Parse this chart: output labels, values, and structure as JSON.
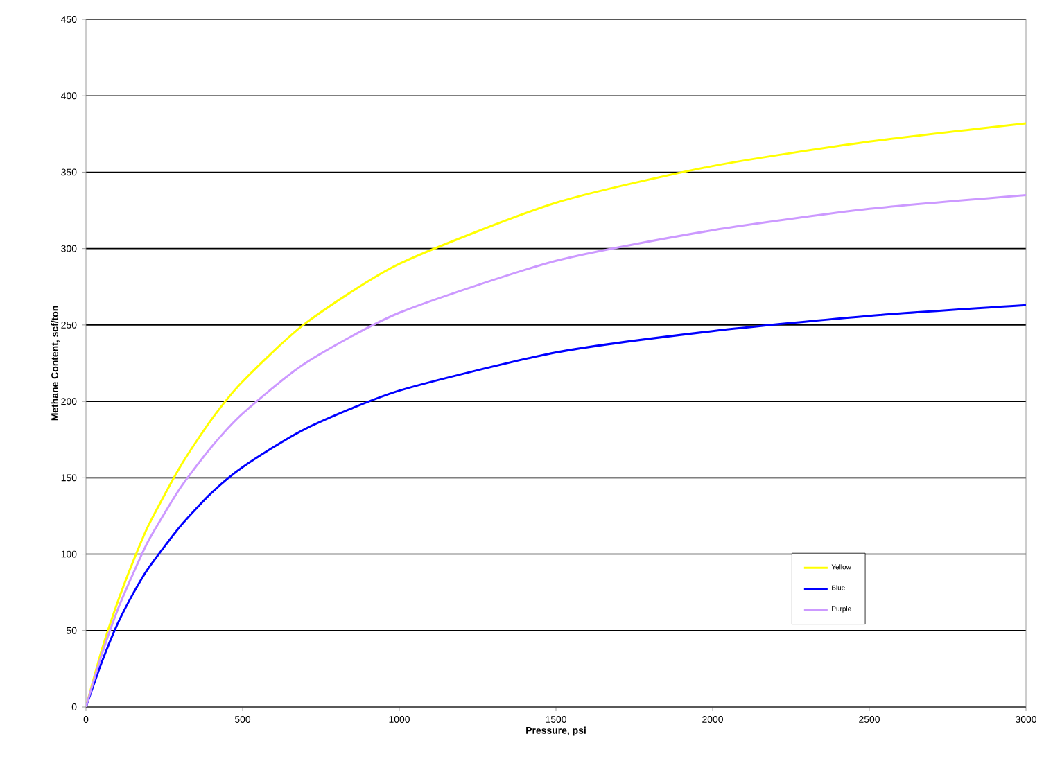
{
  "chart_data": {
    "type": "line",
    "xlabel": "Pressure, psi",
    "ylabel": "Methane Content, scf/ton",
    "x": [
      0,
      50,
      100,
      150,
      200,
      300,
      400,
      500,
      700,
      1000,
      1500,
      2000,
      2500,
      3000
    ],
    "series": [
      {
        "name": "Yellow",
        "color": "#ffff00",
        "values": [
          0,
          37,
          68,
          95,
          119,
          157,
          188,
          213,
          251,
          290,
          330,
          354,
          370,
          382
        ]
      },
      {
        "name": "Blue",
        "color": "#0000ff",
        "values": [
          0,
          29,
          54,
          74,
          91,
          118,
          140,
          157,
          182,
          207,
          232,
          246,
          256,
          263
        ]
      },
      {
        "name": "Purple",
        "color": "#cc99ff",
        "values": [
          0,
          34,
          63,
          87,
          109,
          143,
          170,
          192,
          225,
          258,
          292,
          312,
          326,
          335
        ]
      }
    ],
    "xlim": [
      0,
      3000
    ],
    "ylim": [
      0,
      450
    ],
    "xticks": [
      0,
      500,
      1000,
      1500,
      2000,
      2500,
      3000
    ],
    "yticks": [
      0,
      50,
      100,
      150,
      200,
      250,
      300,
      350,
      400,
      450
    ],
    "grid": "y",
    "legend": "bottom right",
    "marker": "none",
    "line_style": "solid"
  }
}
